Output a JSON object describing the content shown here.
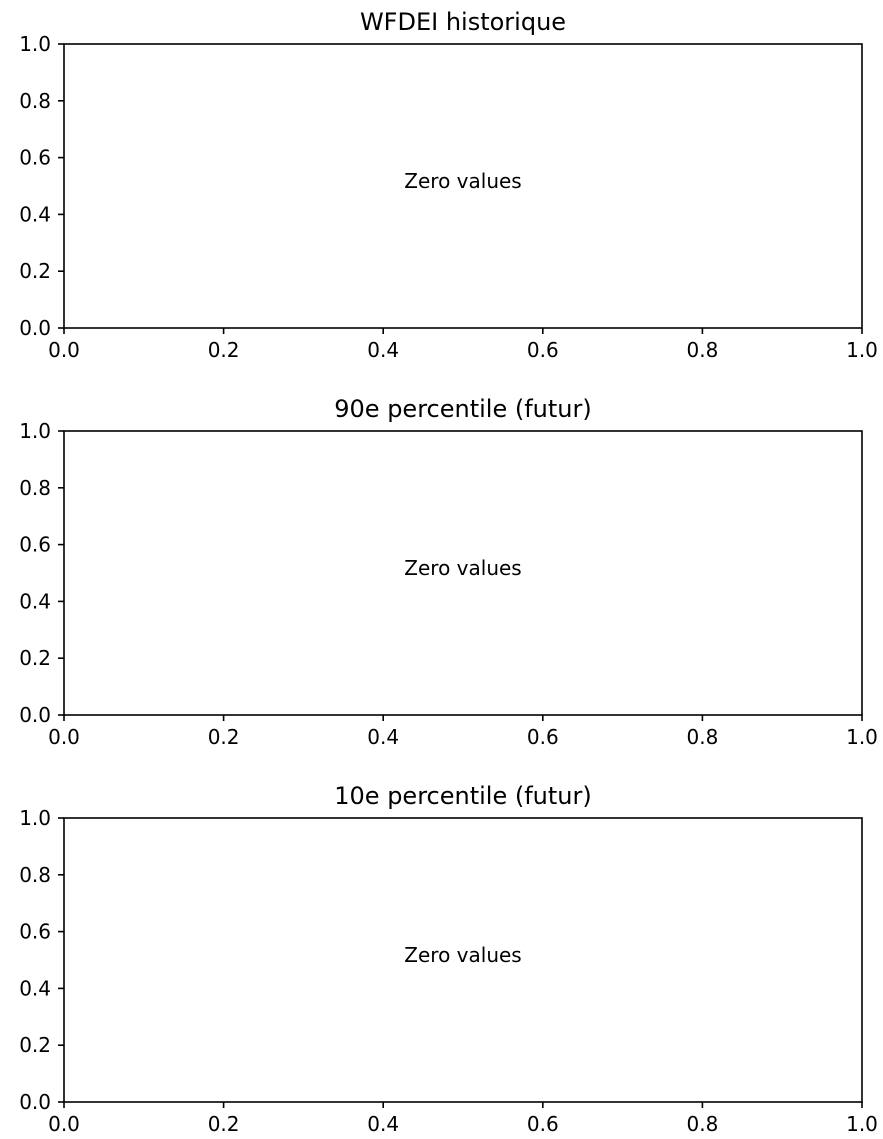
{
  "chart_data": [
    {
      "type": "line",
      "title": "WFDEI historique",
      "xlabel": "",
      "ylabel": "",
      "xlim": [
        0.0,
        1.0
      ],
      "ylim": [
        0.0,
        1.0
      ],
      "x_ticks": [
        "0.0",
        "0.2",
        "0.4",
        "0.6",
        "0.8",
        "1.0"
      ],
      "y_ticks": [
        "0.0",
        "0.2",
        "0.4",
        "0.6",
        "0.8",
        "1.0"
      ],
      "series": [],
      "annotation": "Zero values",
      "grid": false
    },
    {
      "type": "line",
      "title": "90e percentile (futur)",
      "xlabel": "",
      "ylabel": "",
      "xlim": [
        0.0,
        1.0
      ],
      "ylim": [
        0.0,
        1.0
      ],
      "x_ticks": [
        "0.0",
        "0.2",
        "0.4",
        "0.6",
        "0.8",
        "1.0"
      ],
      "y_ticks": [
        "0.0",
        "0.2",
        "0.4",
        "0.6",
        "0.8",
        "1.0"
      ],
      "series": [],
      "annotation": "Zero values",
      "grid": false
    },
    {
      "type": "line",
      "title": "10e percentile (futur)",
      "xlabel": "",
      "ylabel": "",
      "xlim": [
        0.0,
        1.0
      ],
      "ylim": [
        0.0,
        1.0
      ],
      "x_ticks": [
        "0.0",
        "0.2",
        "0.4",
        "0.6",
        "0.8",
        "1.0"
      ],
      "y_ticks": [
        "0.0",
        "0.2",
        "0.4",
        "0.6",
        "0.8",
        "1.0"
      ],
      "series": [],
      "annotation": "Zero values",
      "grid": false
    }
  ]
}
